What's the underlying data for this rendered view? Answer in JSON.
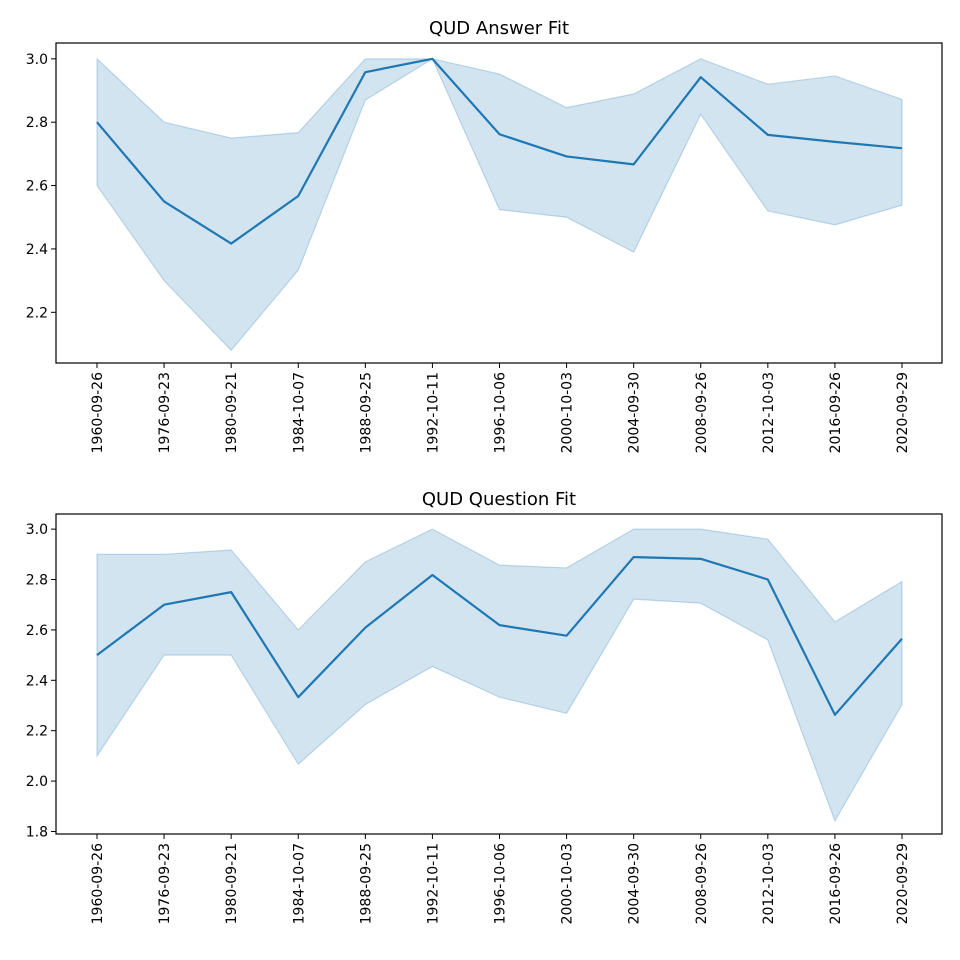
{
  "chart_data": [
    {
      "type": "line",
      "title": "QUD Answer Fit",
      "xlabel": "",
      "ylabel": "",
      "ylim": [
        2.04,
        3.05
      ],
      "yticks": [
        "2.2",
        "2.4",
        "2.6",
        "2.8",
        "3.0"
      ],
      "categories": [
        "1960-09-26",
        "1976-09-23",
        "1980-09-21",
        "1984-10-07",
        "1988-09-25",
        "1992-10-11",
        "1996-10-06",
        "2000-10-03",
        "2004-09-30",
        "2008-09-26",
        "2012-10-03",
        "2016-09-26",
        "2020-09-29"
      ],
      "series": [
        {
          "values": [
            2.8,
            2.55,
            2.417,
            2.567,
            2.958,
            3.0,
            2.762,
            2.692,
            2.667,
            2.942,
            2.76,
            2.738,
            2.718
          ],
          "ci_lower": [
            2.6,
            2.3,
            2.08,
            2.333,
            2.87,
            3.0,
            2.524,
            2.5,
            2.39,
            2.825,
            2.52,
            2.476,
            2.538
          ],
          "ci_upper": [
            3.0,
            2.8,
            2.75,
            2.767,
            3.0,
            3.0,
            2.952,
            2.846,
            2.889,
            3.0,
            2.92,
            2.946,
            2.872
          ],
          "color": "#1f77b4"
        }
      ],
      "grid": false,
      "legend": "none"
    },
    {
      "type": "line",
      "title": "QUD Question Fit",
      "xlabel": "",
      "ylabel": "",
      "ylim": [
        1.79,
        3.06
      ],
      "yticks": [
        "1.8",
        "2.0",
        "2.2",
        "2.4",
        "2.6",
        "2.8",
        "3.0"
      ],
      "categories": [
        "1960-09-26",
        "1976-09-23",
        "1980-09-21",
        "1984-10-07",
        "1988-09-25",
        "1992-10-11",
        "1996-10-06",
        "2000-10-03",
        "2004-09-30",
        "2008-09-26",
        "2012-10-03",
        "2016-09-26",
        "2020-09-29"
      ],
      "series": [
        {
          "values": [
            2.5,
            2.7,
            2.75,
            2.333,
            2.609,
            2.818,
            2.619,
            2.577,
            2.889,
            2.882,
            2.8,
            2.263,
            2.565
          ],
          "ci_lower": [
            2.1,
            2.5,
            2.5,
            2.067,
            2.304,
            2.455,
            2.333,
            2.269,
            2.722,
            2.706,
            2.56,
            1.842,
            2.304
          ],
          "ci_upper": [
            2.9,
            2.9,
            2.917,
            2.6,
            2.87,
            3.0,
            2.857,
            2.846,
            3.0,
            3.0,
            2.96,
            2.632,
            2.792
          ],
          "color": "#1f77b4"
        }
      ],
      "grid": false,
      "legend": "none"
    }
  ]
}
